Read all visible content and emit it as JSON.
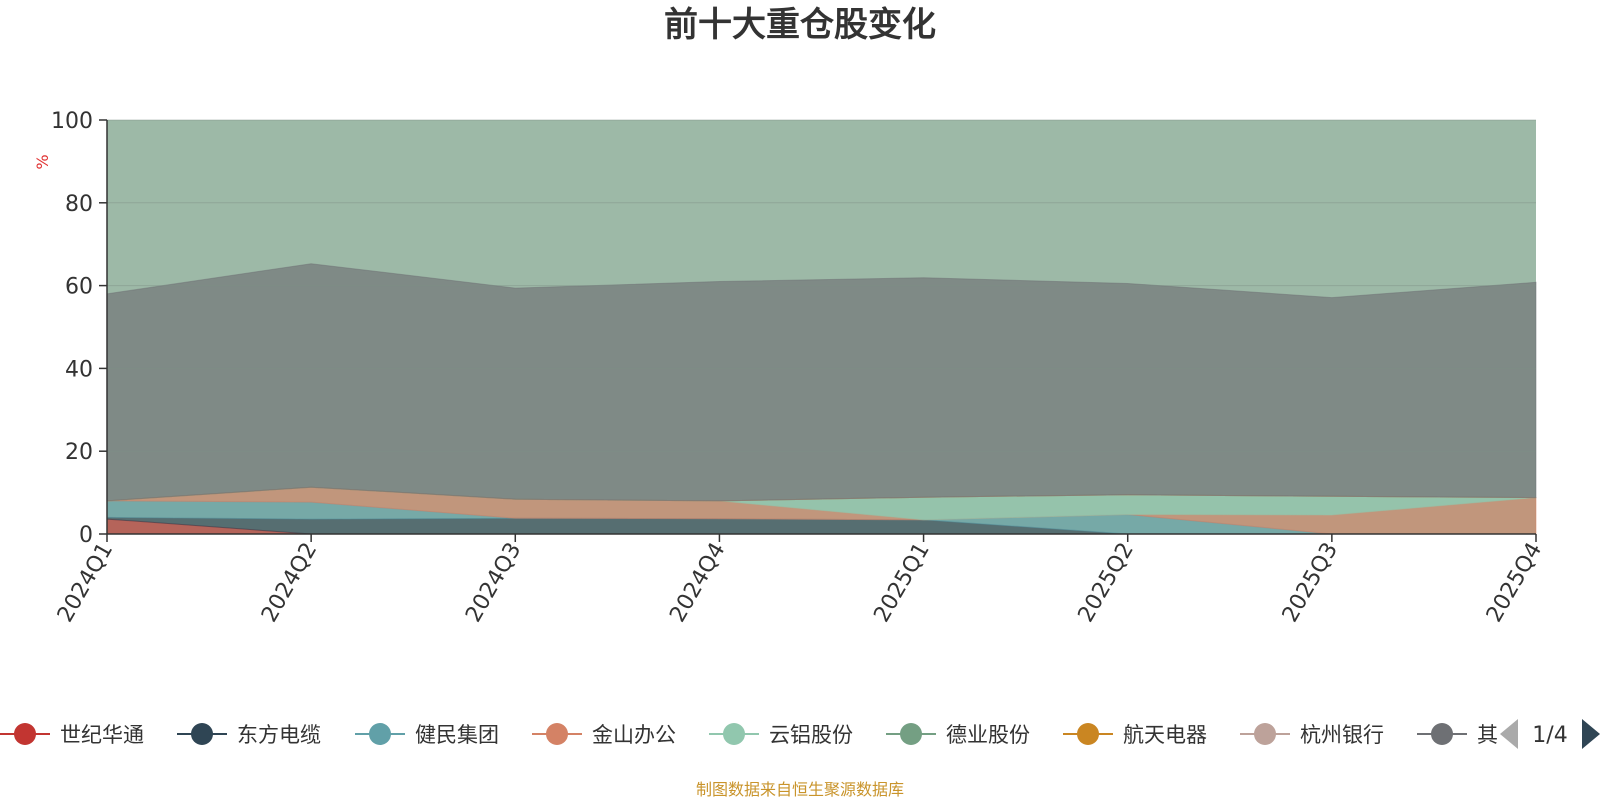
{
  "chart_data": {
    "type": "area",
    "stacked": true,
    "title": "前十大重仓股变化",
    "ylabel": "%",
    "xlabel": "",
    "ylim": [
      0,
      100
    ],
    "yticks": [
      0,
      20,
      40,
      60,
      80,
      100
    ],
    "categories": [
      "2024Q1",
      "2024Q2",
      "2024Q3",
      "2024Q4",
      "2025Q1",
      "2025Q2",
      "2025Q3",
      "2025Q4"
    ],
    "series": [
      {
        "name": "健民集团",
        "values": [
          3.6,
          0,
          0,
          0,
          0,
          0,
          0,
          0
        ]
      },
      {
        "name": "航天电器",
        "values": [
          0.4,
          3.6,
          3.8,
          3.7,
          3.4,
          0,
          0,
          0
        ]
      },
      {
        "name": "杭州银行",
        "values": [
          4.0,
          4.1,
          0,
          0,
          0,
          4.7,
          0,
          0
        ]
      },
      {
        "name": "东方电缆",
        "values": [
          0,
          3.6,
          4.6,
          4.3,
          0,
          0,
          4.6,
          8.8
        ]
      },
      {
        "name": "世纪华通",
        "values": [
          0,
          0,
          0,
          0,
          5.5,
          4.8,
          4.5,
          0
        ]
      },
      {
        "name": "金山办公",
        "values": [
          0,
          0,
          0,
          0,
          0,
          0,
          0,
          0
        ]
      },
      {
        "name": "云铝股份",
        "values": [
          0,
          0,
          0,
          0,
          0,
          0,
          0,
          0
        ]
      },
      {
        "name": "德业股份",
        "values": [
          0,
          0,
          0,
          0,
          0,
          0,
          0,
          0
        ]
      },
      {
        "name": "其他",
        "values": [
          50,
          54,
          51,
          53,
          53,
          51,
          48,
          52
        ]
      }
    ],
    "colors": [
      "#c23531",
      "#2f4554",
      "#61a0a8",
      "#d48265",
      "#91c7ae",
      "#749f83",
      "#ca8622",
      "#bda29a",
      "#6e7074",
      "#546570",
      "#c4ccd3"
    ],
    "fill_color": "#9db9a7",
    "area_opacity": 0.65
  },
  "legend": {
    "items": [
      {
        "name": "世纪华通",
        "color": "#c23531"
      },
      {
        "name": "东方电缆",
        "color": "#2f4554"
      },
      {
        "name": "健民集团",
        "color": "#61a0a8"
      },
      {
        "name": "金山办公",
        "color": "#d48265"
      },
      {
        "name": "云铝股份",
        "color": "#91c7ae"
      },
      {
        "name": "德业股份",
        "color": "#749f83"
      },
      {
        "name": "航天电器",
        "color": "#ca8622"
      },
      {
        "name": "杭州银行",
        "color": "#bda29a"
      },
      {
        "name": "其",
        "color": "#6e7074"
      }
    ],
    "page": "1/4",
    "prev_icon": "arrow-left-icon",
    "next_icon": "arrow-right-icon",
    "prev_color": "#aaaaaa",
    "next_color": "#2f4554"
  },
  "source": "制图数据来自恒生聚源数据库",
  "source_color": "#c9942b",
  "unit_color": "#e03030",
  "axis_color": "#333333"
}
